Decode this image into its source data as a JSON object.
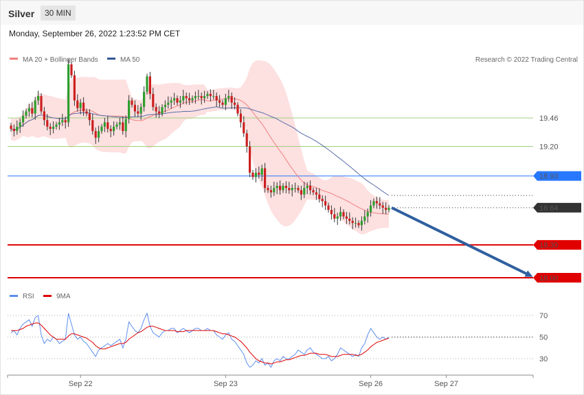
{
  "header": {
    "symbol": "Silver",
    "timeframe": "30 MIN",
    "datetime": "Monday, September 26, 2022 1:23:52 PM CET"
  },
  "legend_main": [
    {
      "label": "MA 20 + Bollinger Bands",
      "color": "#f08080"
    },
    {
      "label": "MA 50",
      "color": "#2f5597"
    }
  ],
  "copyright": "Research © 2022 Trading Central",
  "legend_rsi": [
    {
      "label": "RSI",
      "color": "#5b8def"
    },
    {
      "label": "9MA",
      "color": "#e00000"
    }
  ],
  "colors": {
    "up": "#2e9e2e",
    "down": "#cc1f1f",
    "band_fill": "#fde0e0",
    "ma20": "#f08080",
    "ma50": "#5a6fa8",
    "resistance_green": "#9fd07f",
    "level_blue": "#2878ff",
    "level_red": "#e00000",
    "last_price": "#333333",
    "arrow": "#2f5f9f"
  },
  "chart_data": [
    {
      "type": "candlestick",
      "y_range": [
        17.96,
        20.1
      ],
      "x_tick_labels": [
        {
          "label": "Sep 22",
          "index": 23
        },
        {
          "label": "Sep 23",
          "index": 71
        },
        {
          "label": "Sep 26",
          "index": 119
        },
        {
          "label": "Sep 27",
          "index": 144
        }
      ],
      "levels": [
        {
          "value": 19.46,
          "label": "19.46",
          "style": "resistance"
        },
        {
          "value": 19.2,
          "label": "19.20",
          "style": "resistance"
        },
        {
          "value": 18.93,
          "label": "18.93",
          "style": "pivot"
        },
        {
          "value": 18.64,
          "label": "18.64",
          "style": "last"
        },
        {
          "value": 18.3,
          "label": "18.30",
          "style": "target"
        },
        {
          "value": 18.0,
          "label": "18.00",
          "style": "target"
        }
      ],
      "forecast_arrow": {
        "from": 18.64,
        "to": 18.0
      },
      "close": [
        19.36,
        19.34,
        19.38,
        19.42,
        19.48,
        19.52,
        19.55,
        19.5,
        19.62,
        19.66,
        19.52,
        19.44,
        19.38,
        19.36,
        19.38,
        19.4,
        19.42,
        19.44,
        19.42,
        19.95,
        19.85,
        19.62,
        19.55,
        19.6,
        19.52,
        19.5,
        19.44,
        19.34,
        19.28,
        19.34,
        19.38,
        19.42,
        19.36,
        19.34,
        19.38,
        19.4,
        19.42,
        19.34,
        19.45,
        19.62,
        19.58,
        19.52,
        19.5,
        19.56,
        19.7,
        19.84,
        19.68,
        19.56,
        19.52,
        19.5,
        19.56,
        19.58,
        19.6,
        19.62,
        19.64,
        19.6,
        19.62,
        19.66,
        19.64,
        19.62,
        19.64,
        19.66,
        19.66,
        19.64,
        19.66,
        19.68,
        19.66,
        19.66,
        19.62,
        19.6,
        19.58,
        19.64,
        19.66,
        19.6,
        19.58,
        19.5,
        19.42,
        19.32,
        19.2,
        18.96,
        18.92,
        18.96,
        18.94,
        19.0,
        18.82,
        18.8,
        18.78,
        18.82,
        18.84,
        18.8,
        18.84,
        18.82,
        18.8,
        18.82,
        18.82,
        18.8,
        18.76,
        18.82,
        18.84,
        18.8,
        18.78,
        18.76,
        18.72,
        18.7,
        18.66,
        18.62,
        18.58,
        18.54,
        18.56,
        18.6,
        18.56,
        18.54,
        18.52,
        18.5,
        18.5,
        18.48,
        18.52,
        18.56,
        18.6,
        18.66,
        18.7,
        18.68,
        18.66,
        18.64,
        18.62,
        18.64
      ],
      "rsi": {
        "y_range": [
          20,
          80
        ],
        "levels": [
          70,
          50,
          30
        ],
        "rsi": [
          54,
          56,
          52,
          58,
          62,
          64,
          66,
          60,
          68,
          70,
          52,
          44,
          48,
          46,
          50,
          48,
          44,
          46,
          48,
          72,
          62,
          52,
          48,
          50,
          46,
          44,
          40,
          36,
          32,
          38,
          40,
          42,
          44,
          42,
          44,
          46,
          48,
          40,
          48,
          64,
          60,
          56,
          54,
          58,
          66,
          72,
          60,
          54,
          52,
          50,
          54,
          56,
          56,
          58,
          58,
          54,
          56,
          58,
          56,
          54,
          56,
          58,
          58,
          56,
          56,
          58,
          56,
          56,
          52,
          50,
          48,
          52,
          54,
          48,
          46,
          42,
          38,
          34,
          26,
          22,
          24,
          28,
          26,
          30,
          24,
          26,
          22,
          28,
          30,
          28,
          32,
          30,
          30,
          32,
          34,
          38,
          36,
          34,
          38,
          40,
          36,
          34,
          32,
          30,
          30,
          32,
          28,
          30,
          34,
          40,
          38,
          36,
          34,
          32,
          34,
          32,
          40,
          44,
          52,
          58,
          54,
          50,
          48,
          50,
          48,
          50
        ],
        "ma": [
          56,
          56,
          56,
          57,
          58,
          60,
          61,
          62,
          63,
          63,
          61,
          58,
          55,
          52,
          50,
          48,
          48,
          48,
          48,
          51,
          53,
          53,
          52,
          51,
          50,
          49,
          47,
          45,
          42,
          40,
          39,
          39,
          40,
          41,
          42,
          43,
          44,
          44,
          45,
          48,
          50,
          52,
          54,
          55,
          57,
          59,
          60,
          60,
          59,
          58,
          57,
          56,
          56,
          56,
          56,
          55,
          55,
          55,
          56,
          56,
          56,
          56,
          56,
          56,
          56,
          56,
          56,
          56,
          55,
          54,
          53,
          53,
          52,
          51,
          50,
          48,
          46,
          43,
          40,
          36,
          33,
          30,
          28,
          27,
          26,
          26,
          25,
          26,
          27,
          27,
          28,
          29,
          29,
          30,
          31,
          32,
          33,
          33,
          34,
          35,
          35,
          35,
          34,
          34,
          34,
          33,
          32,
          32,
          32,
          33,
          34,
          34,
          34,
          34,
          33,
          33,
          34,
          36,
          38,
          41,
          43,
          45,
          46,
          47,
          48,
          49
        ]
      }
    }
  ]
}
